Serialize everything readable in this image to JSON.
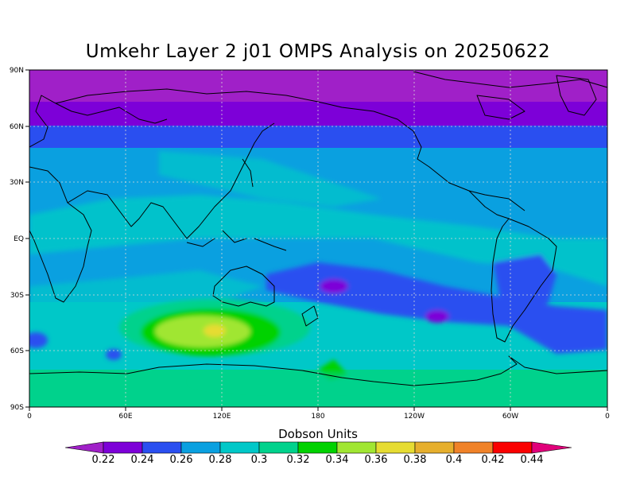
{
  "title": "Umkehr Layer 2 j01 OMPS Analysis on 20250622",
  "colorbar": {
    "title": "Dobson Units",
    "labels": [
      "0.22",
      "0.24",
      "0.26",
      "0.28",
      "0.3",
      "0.32",
      "0.34",
      "0.36",
      "0.38",
      "0.4",
      "0.42",
      "0.44"
    ],
    "colors": [
      "#a020c8",
      "#7d00d8",
      "#2a4ff0",
      "#0aa0e0",
      "#00c8c8",
      "#00d28c",
      "#00d200",
      "#a0e632",
      "#e6dc32",
      "#e6af2d",
      "#f08228",
      "#fa0000",
      "#e0007a"
    ]
  },
  "axes": {
    "lat_labels": [
      "90N",
      "60N",
      "30N",
      "EQ",
      "30S",
      "60S",
      "90S"
    ],
    "lon_labels": [
      "0",
      "60E",
      "120E",
      "180",
      "120W",
      "60W",
      "0"
    ]
  }
}
